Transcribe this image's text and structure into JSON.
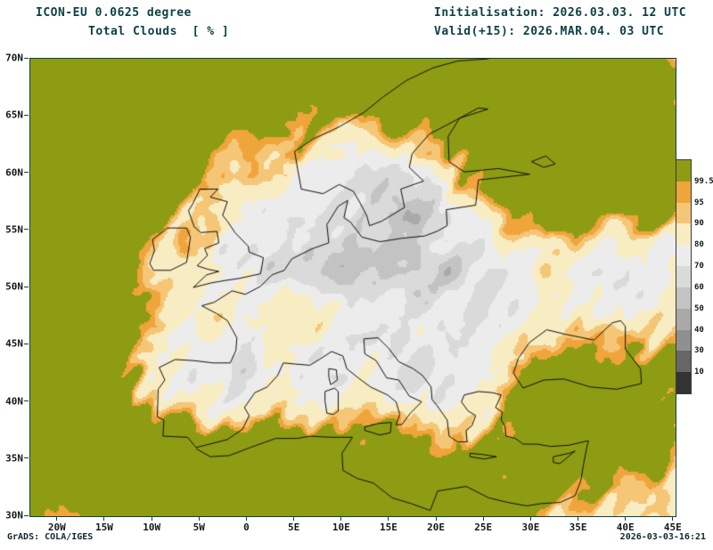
{
  "header": {
    "model": "ICON-EU 0.0625 degree",
    "variable": "Total Clouds  [ % ]",
    "init": "Initialisation: 2026.03.03. 12 UTC",
    "valid": "Valid(+15): 2026.MAR.04. 03 UTC"
  },
  "map": {
    "x_ticks": [
      "20W",
      "15W",
      "10W",
      "5W",
      "0",
      "5E",
      "10E",
      "15E",
      "20E",
      "25E",
      "30E",
      "35E",
      "40E",
      "45E"
    ],
    "y_ticks": [
      "70N",
      "65N",
      "60N",
      "55N",
      "50N",
      "45N",
      "40N",
      "35N",
      "30N"
    ]
  },
  "colorbar": {
    "labels": [
      "99.5",
      "95",
      "90",
      "80",
      "70",
      "60",
      "50",
      "40",
      "30",
      "10"
    ],
    "colors": [
      "#8e9c13",
      "#efa43c",
      "#f5c676",
      "#f8ecc3",
      "#ececec",
      "#dadada",
      "#c3c3c3",
      "#a9a9a9",
      "#8f8f8f",
      "#666666",
      "#333333"
    ]
  },
  "footer": {
    "credit": "GrADS: COLA/IGES",
    "timestamp": "2026-03-03-16:21"
  },
  "colors": {
    "title_text": "#0c3f45",
    "frame": "#0c3f45",
    "coastline": "#101010",
    "background": "#ffffff"
  },
  "chart_data": {
    "type": "heatmap",
    "title": "ICON-EU 0.0625 degree — Total Clouds [%]",
    "region": "Europe / North Atlantic / Mediterranean",
    "lon_range": [
      "20W",
      "45E"
    ],
    "lat_range": [
      "30N",
      "70N"
    ],
    "levels_percent": [
      10,
      30,
      40,
      50,
      60,
      70,
      80,
      90,
      95,
      99.5
    ],
    "palette_high_to_low": [
      "#8e9c13",
      "#efa43c",
      "#f5c676",
      "#f8ecc3",
      "#ececec",
      "#dadada",
      "#c3c3c3",
      "#a9a9a9",
      "#8f8f8f",
      "#666666",
      "#333333"
    ],
    "legend_position": "right",
    "grid": false
  }
}
